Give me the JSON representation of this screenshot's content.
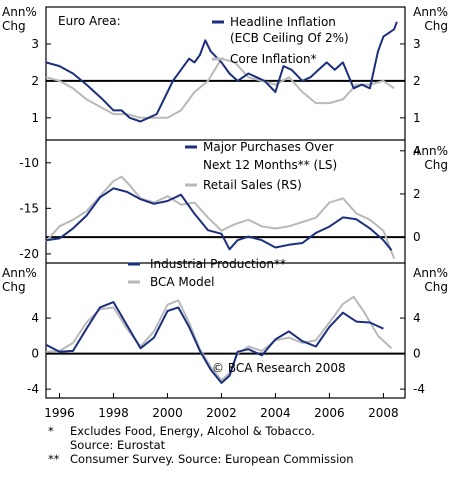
{
  "colors": {
    "navy": "#1c2f7e",
    "gray": "#b9b9b9",
    "frame": "#000000"
  },
  "chart_data": [
    {
      "type": "line",
      "panel_title": "Euro Area:",
      "left_unit": "Ann%\nChg",
      "right_unit": "Ann%\nChg",
      "ylim": [
        0.4,
        4.0
      ],
      "yticks": [
        1,
        2,
        3
      ],
      "reference_line": 2,
      "legend_placement": "top-right",
      "series": [
        {
          "name": "Headline Inflation (ECB Ceiling Of 2%)",
          "color": "#1c2f7e",
          "axis": "both",
          "x": [
            1995.5,
            1996.0,
            1996.5,
            1997.0,
            1997.3,
            1997.6,
            1998.0,
            1998.3,
            1998.6,
            1999.0,
            1999.3,
            1999.6,
            2000.0,
            2000.2,
            2000.5,
            2000.8,
            2001.0,
            2001.2,
            2001.4,
            2001.6,
            2002.0,
            2002.3,
            2002.6,
            2003.0,
            2003.3,
            2003.6,
            2004.0,
            2004.3,
            2004.6,
            2005.0,
            2005.3,
            2005.6,
            2005.9,
            2006.2,
            2006.5,
            2006.9,
            2007.2,
            2007.5,
            2007.8,
            2008.0,
            2008.2,
            2008.4,
            2008.5
          ],
          "values": [
            2.5,
            2.4,
            2.2,
            1.9,
            1.7,
            1.5,
            1.2,
            1.2,
            1.0,
            0.9,
            1.0,
            1.1,
            1.7,
            2.0,
            2.3,
            2.6,
            2.5,
            2.7,
            3.1,
            2.8,
            2.5,
            2.2,
            2.0,
            2.2,
            2.1,
            2.0,
            1.7,
            2.4,
            2.3,
            2.0,
            2.1,
            2.3,
            2.5,
            2.3,
            2.5,
            1.8,
            1.9,
            1.8,
            2.8,
            3.2,
            3.3,
            3.4,
            3.6
          ]
        },
        {
          "name": "Core Inflation*",
          "color": "#b9b9b9",
          "axis": "both",
          "x": [
            1995.5,
            1996.0,
            1996.5,
            1997.0,
            1997.5,
            1998.0,
            1998.5,
            1999.0,
            1999.5,
            2000.0,
            2000.5,
            2001.0,
            2001.5,
            2002.0,
            2002.5,
            2003.0,
            2003.5,
            2004.0,
            2004.5,
            2005.0,
            2005.5,
            2006.0,
            2006.5,
            2007.0,
            2007.5,
            2008.0,
            2008.4
          ],
          "values": [
            2.1,
            2.0,
            1.8,
            1.5,
            1.3,
            1.1,
            1.1,
            1.0,
            1.0,
            1.0,
            1.2,
            1.7,
            2.0,
            2.6,
            2.5,
            2.1,
            2.0,
            1.9,
            2.1,
            1.7,
            1.4,
            1.4,
            1.5,
            1.9,
            1.9,
            2.0,
            1.8
          ]
        }
      ]
    },
    {
      "type": "line",
      "left_unit": "",
      "right_unit": "Ann%\nChg",
      "left_ylim": [
        -21.0,
        -7.5
      ],
      "left_yticks": [
        -20,
        -15,
        -10
      ],
      "right_ylim": [
        -1.2,
        4.5
      ],
      "right_yticks": [
        0,
        2,
        4
      ],
      "reference_line": 0,
      "legend_placement": "top-right",
      "series": [
        {
          "name": "Major Purchases Over Next 12 Months** (LS)",
          "color": "#1c2f7e",
          "axis": "left",
          "x": [
            1995.5,
            1996.0,
            1996.5,
            1997.0,
            1997.5,
            1998.0,
            1998.5,
            1999.0,
            1999.5,
            2000.0,
            2000.5,
            2001.0,
            2001.5,
            2002.0,
            2002.3,
            2002.6,
            2003.0,
            2003.5,
            2004.0,
            2004.5,
            2005.0,
            2005.5,
            2006.0,
            2006.5,
            2007.0,
            2007.5,
            2008.0,
            2008.3
          ],
          "values": [
            -18.5,
            -18.3,
            -17.2,
            -15.8,
            -13.8,
            -12.8,
            -13.2,
            -14.0,
            -14.5,
            -14.2,
            -13.5,
            -15.6,
            -17.4,
            -17.8,
            -19.5,
            -18.5,
            -18.1,
            -18.5,
            -19.3,
            -19.0,
            -18.8,
            -17.7,
            -17.0,
            -16.0,
            -16.2,
            -17.2,
            -18.5,
            -19.6
          ]
        },
        {
          "name": "Retail Sales (RS)",
          "color": "#b9b9b9",
          "axis": "right",
          "x": [
            1995.5,
            1996.0,
            1996.5,
            1997.0,
            1997.5,
            1998.0,
            1998.3,
            1998.6,
            1999.0,
            1999.5,
            2000.0,
            2000.5,
            2001.0,
            2001.5,
            2002.0,
            2002.5,
            2003.0,
            2003.5,
            2004.0,
            2004.5,
            2005.0,
            2005.5,
            2006.0,
            2006.5,
            2007.0,
            2007.5,
            2008.0,
            2008.4
          ],
          "values": [
            -0.2,
            0.5,
            0.8,
            1.2,
            1.9,
            2.6,
            2.8,
            2.4,
            1.8,
            1.6,
            1.9,
            1.5,
            1.6,
            0.9,
            0.3,
            0.6,
            0.8,
            0.5,
            0.4,
            0.5,
            0.7,
            0.9,
            1.6,
            1.8,
            1.1,
            0.8,
            0.3,
            -1.0
          ]
        }
      ]
    },
    {
      "type": "line",
      "left_unit": "Ann%\nChg",
      "right_unit": "Ann%\nChg",
      "ylim": [
        -5.0,
        10.2
      ],
      "yticks": [
        -4,
        0,
        4
      ],
      "reference_line": 0,
      "legend_placement": "top-left",
      "annotation": "© BCA Research 2008",
      "xlim": [
        1995.5,
        2008.8
      ],
      "xticks": [
        1996,
        1998,
        2000,
        2002,
        2004,
        2006,
        2008
      ],
      "series": [
        {
          "name": "Industrial Production**",
          "color": "#1c2f7e",
          "axis": "both",
          "x": [
            1995.5,
            1996.0,
            1996.5,
            1997.0,
            1997.5,
            1998.0,
            1998.5,
            1999.0,
            1999.5,
            2000.0,
            2000.4,
            2000.8,
            2001.2,
            2001.6,
            2002.0,
            2002.3,
            2002.6,
            2003.0,
            2003.5,
            2004.0,
            2004.5,
            2005.0,
            2005.5,
            2006.0,
            2006.5,
            2007.0,
            2007.5,
            2008.0
          ],
          "values": [
            1.0,
            0.2,
            0.3,
            2.8,
            5.2,
            5.8,
            3.2,
            0.6,
            1.8,
            4.8,
            5.2,
            3.0,
            0.3,
            -1.8,
            -3.3,
            -2.5,
            0.2,
            0.5,
            -0.2,
            1.6,
            2.5,
            1.4,
            0.8,
            3.0,
            4.6,
            3.6,
            3.5,
            2.8
          ]
        },
        {
          "name": "BCA Model",
          "color": "#b9b9b9",
          "axis": "both",
          "x": [
            1995.5,
            1996.0,
            1996.5,
            1997.0,
            1997.5,
            1998.0,
            1998.5,
            1999.0,
            1999.5,
            2000.0,
            2000.4,
            2000.8,
            2001.2,
            2001.6,
            2002.0,
            2002.3,
            2002.6,
            2003.0,
            2003.5,
            2004.0,
            2004.5,
            2005.0,
            2005.5,
            2006.0,
            2006.5,
            2006.9,
            2007.3,
            2007.8,
            2008.3
          ],
          "values": [
            0.2,
            0.3,
            1.2,
            3.5,
            5.0,
            5.2,
            2.8,
            0.8,
            2.5,
            5.5,
            6.0,
            3.5,
            0.5,
            -1.5,
            -3.0,
            -2.2,
            0.0,
            0.8,
            0.3,
            1.5,
            1.8,
            1.2,
            1.5,
            3.5,
            5.6,
            6.4,
            4.6,
            2.0,
            0.6
          ]
        }
      ]
    }
  ],
  "footnotes": [
    {
      "mark": "*",
      "text": "Excludes Food, Energy, Alcohol & Tobacco."
    },
    {
      "mark": "",
      "text": "Source: Eurostat"
    },
    {
      "mark": "**",
      "text": "Consumer Survey. Source: European Commission"
    }
  ]
}
